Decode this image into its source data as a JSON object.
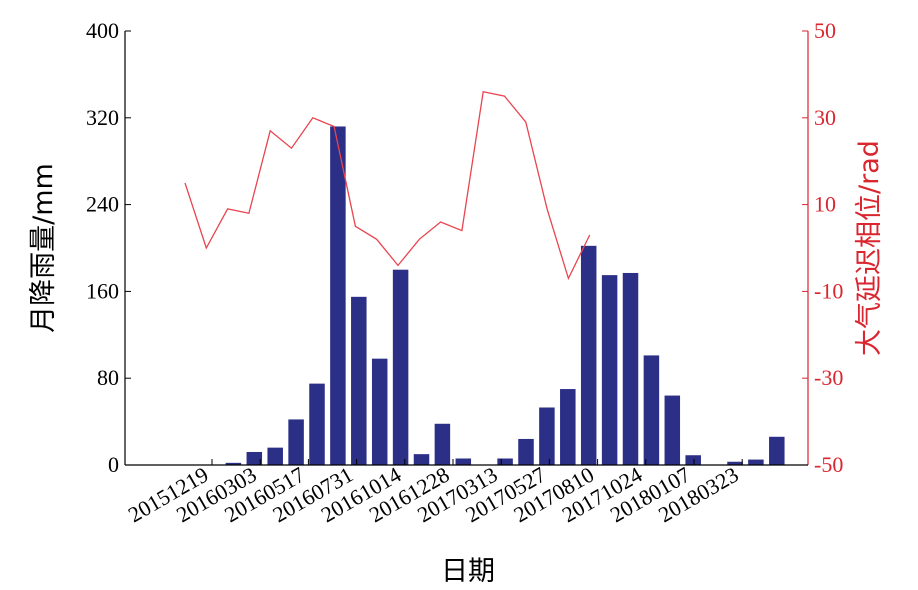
{
  "chart_data": {
    "type": "bar",
    "xlabel": "日期",
    "ylabel": "月降雨量/mm",
    "y2label": "大气延迟相位/rad",
    "ylim": [
      0,
      400
    ],
    "y2lim": [
      -50,
      50
    ],
    "yticks": [
      "0",
      "80",
      "160",
      "240",
      "320",
      "400"
    ],
    "y2ticks": [
      "-50",
      "-30",
      "-10",
      "10",
      "30",
      "50"
    ],
    "x_tick_labels": [
      "20151219",
      "20160303",
      "20160517",
      "20160731",
      "20161014",
      "20161228",
      "20170313",
      "20170527",
      "20170810",
      "20171024",
      "20180107",
      "20180323"
    ],
    "grid": false,
    "colors": {
      "bars": "#2b2f86",
      "line": "#e8454f",
      "right_axis": "#d9262f"
    },
    "series": [
      {
        "type": "bar",
        "axis": "left",
        "values": [
          0,
          2,
          12,
          16,
          42,
          75,
          312,
          155,
          98,
          180,
          10,
          38,
          6,
          0,
          6,
          24,
          53,
          70,
          202,
          175,
          177,
          101,
          64,
          9,
          0,
          3,
          5,
          26
        ]
      },
      {
        "type": "line",
        "axis": "right",
        "values": [
          15,
          0,
          9,
          8,
          27,
          23,
          30,
          28,
          5,
          2,
          -4,
          2,
          6,
          4,
          36,
          35,
          29,
          9,
          -7,
          3
        ]
      }
    ]
  }
}
